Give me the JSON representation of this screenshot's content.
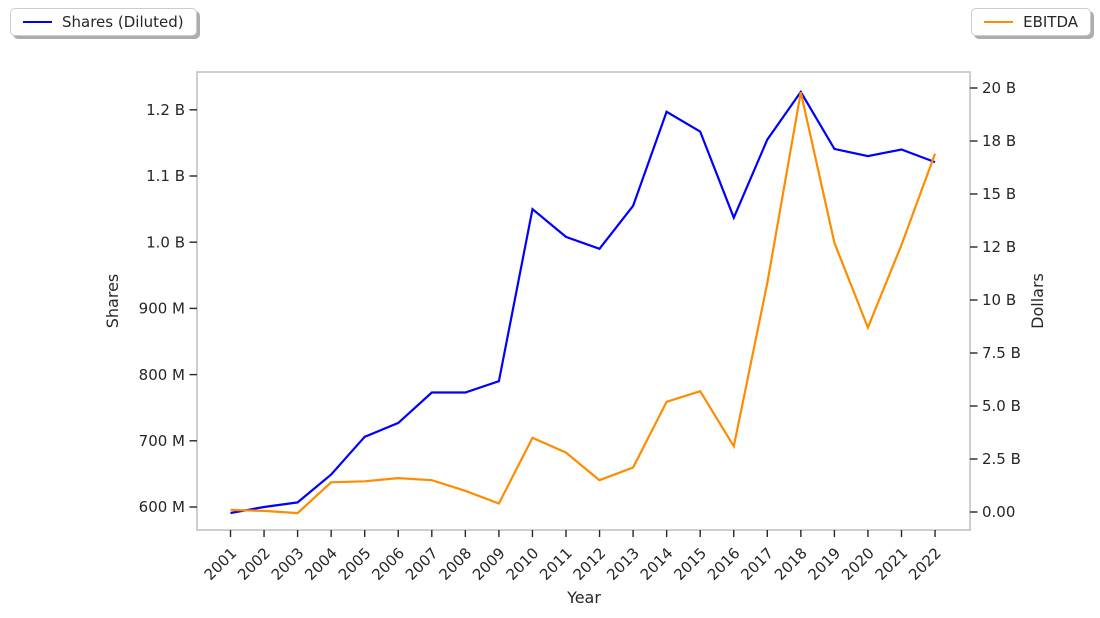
{
  "legend_left": {
    "label": "Shares (Diluted)"
  },
  "legend_right": {
    "label": "EBITDA"
  },
  "chart_data": {
    "type": "line",
    "title": "",
    "xlabel": "Year",
    "x": [
      2001,
      2002,
      2003,
      2004,
      2005,
      2006,
      2007,
      2008,
      2009,
      2010,
      2011,
      2012,
      2013,
      2014,
      2015,
      2016,
      2017,
      2018,
      2019,
      2020,
      2021,
      2022
    ],
    "series": [
      {
        "name": "Shares (Diluted)",
        "axis": "left",
        "color": "#0000ff",
        "unit": "shares (millions)",
        "values_millions": [
          591,
          600,
          607,
          649,
          706,
          727,
          773,
          773,
          790,
          1050,
          1008,
          990,
          1055,
          1197,
          1167,
          1037,
          1155,
          1227,
          1141,
          1130,
          1140,
          1121
        ]
      },
      {
        "name": "EBITDA",
        "axis": "right",
        "color": "#ff8c00",
        "unit": "USD (billions)",
        "values_billions": [
          0.1,
          0.05,
          -0.05,
          1.4,
          1.45,
          1.6,
          1.5,
          1.0,
          0.4,
          3.5,
          2.8,
          1.5,
          2.1,
          5.2,
          5.7,
          3.1,
          10.8,
          19.8,
          12.7,
          8.7,
          12.6,
          16.9
        ]
      }
    ],
    "left_axis": {
      "label": "Shares",
      "tick_values_millions": [
        600,
        700,
        800,
        900,
        1000,
        1100,
        1200
      ],
      "tick_labels": [
        "600 M",
        "700 M",
        "800 M",
        "900 M",
        "1.0 B",
        "1.1 B",
        "1.2 B"
      ],
      "range_millions": [
        560,
        1260
      ]
    },
    "right_axis": {
      "label": "Dollars",
      "tick_values_billions": [
        0,
        2.5,
        5,
        7.5,
        10,
        12.5,
        15,
        17.5,
        20
      ],
      "tick_labels": [
        "0.00",
        "2.5 B",
        "5.0 B",
        "7.5 B",
        "10 B",
        "12 B",
        "15 B",
        "18 B",
        "20 B"
      ],
      "range_billions": [
        -0.85,
        20.8
      ]
    },
    "grid": false,
    "legend_position": {
      "shares": "upper left (outside)",
      "ebitda": "upper right (outside)"
    }
  }
}
